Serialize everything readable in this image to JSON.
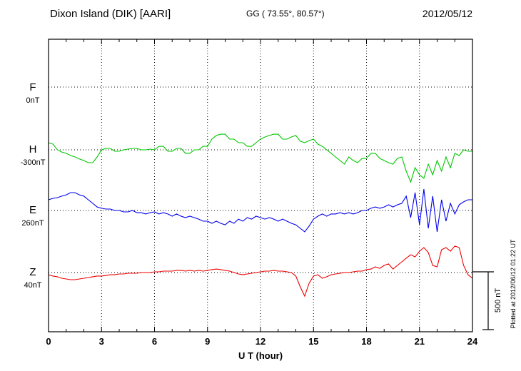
{
  "header": {
    "station_title": "Dixon Island (DIK)  [AARI]",
    "gg_coords": "GG ( 73.55°,  80.57°)",
    "date": "2012/05/12"
  },
  "axis": {
    "x_label": "U T (hour)",
    "x_ticks": [
      "0",
      "3",
      "6",
      "9",
      "12",
      "15",
      "18",
      "21",
      "24"
    ]
  },
  "scale_bar": {
    "label": "500 nT",
    "nT": 500
  },
  "footer_note": "Plotted at 2012/06/12 01:22 UT",
  "chart_data": {
    "type": "line",
    "title": "Dixon Island (DIK) [AARI] magnetogram 2012/05/12",
    "xlabel": "U T (hour)",
    "ylabel": "",
    "x_range": [
      0,
      24
    ],
    "sample_interval_hours": 0.25,
    "grid": "dotted",
    "legend_position": "left-baseline-labels",
    "scale_bar_nT": 500,
    "series": [
      {
        "id": "F",
        "label": "F",
        "baseline_label": "0nT",
        "base_nT": 0,
        "color": "#ffa500",
        "offsets_nT": []
      },
      {
        "id": "H",
        "label": "H",
        "baseline_label": "-300nT",
        "base_nT": -300,
        "color": "#00c800",
        "offsets_nT": [
          59,
          47,
          0,
          -18,
          -29,
          -47,
          -59,
          -76,
          -88,
          -106,
          -106,
          -59,
          0,
          12,
          12,
          -12,
          -12,
          0,
          6,
          12,
          12,
          0,
          0,
          6,
          0,
          29,
          29,
          -12,
          -12,
          12,
          12,
          -29,
          -29,
          0,
          0,
          29,
          29,
          88,
          118,
          129,
          129,
          88,
          88,
          59,
          59,
          29,
          29,
          59,
          88,
          106,
          118,
          129,
          129,
          88,
          88,
          106,
          118,
          71,
          59,
          76,
          88,
          47,
          29,
          0,
          -29,
          -59,
          -88,
          -118,
          -59,
          -88,
          -106,
          -71,
          -71,
          -29,
          -29,
          -71,
          -88,
          -106,
          -118,
          -71,
          -59,
          -176,
          -265,
          -147,
          -206,
          -235,
          -118,
          -206,
          -88,
          -176,
          -59,
          -147,
          -29,
          -47,
          0,
          -12,
          -12
        ]
      },
      {
        "id": "E",
        "label": "E",
        "baseline_label": "260nT",
        "base_nT": 260,
        "color": "#0000ee",
        "offsets_nT": [
          88,
          100,
          106,
          118,
          129,
          147,
          147,
          129,
          118,
          88,
          59,
          29,
          18,
          12,
          12,
          0,
          0,
          -12,
          -12,
          0,
          -18,
          -18,
          -29,
          -18,
          -12,
          -29,
          -18,
          -29,
          -47,
          -29,
          -47,
          -59,
          -47,
          -59,
          -71,
          -88,
          -88,
          -106,
          -88,
          -106,
          -118,
          -88,
          -106,
          -71,
          -88,
          -59,
          -71,
          -47,
          -59,
          -71,
          -59,
          -71,
          -88,
          -71,
          -88,
          -106,
          -118,
          -147,
          -176,
          -129,
          -71,
          -47,
          -29,
          -47,
          -29,
          -29,
          -18,
          -29,
          -18,
          -29,
          -18,
          0,
          0,
          18,
          29,
          18,
          29,
          47,
          29,
          47,
          59,
          118,
          -59,
          147,
          -118,
          176,
          -147,
          118,
          -176,
          88,
          -88,
          59,
          -29,
          47,
          71,
          88,
          88
        ]
      },
      {
        "id": "Z",
        "label": "Z",
        "baseline_label": "40nT",
        "base_nT": 40,
        "color": "#ee0000",
        "offsets_nT": [
          -18,
          -29,
          -35,
          -47,
          -53,
          -59,
          -59,
          -53,
          -47,
          -41,
          -35,
          -29,
          -29,
          -24,
          -18,
          -18,
          -12,
          -12,
          -6,
          -6,
          -6,
          0,
          0,
          0,
          6,
          6,
          12,
          12,
          12,
          18,
          18,
          12,
          18,
          12,
          18,
          12,
          18,
          24,
          29,
          24,
          18,
          12,
          0,
          -12,
          -18,
          -12,
          -6,
          0,
          6,
          12,
          12,
          18,
          12,
          12,
          6,
          0,
          -29,
          -118,
          -194,
          -88,
          -29,
          -18,
          -47,
          -35,
          -18,
          -12,
          -6,
          0,
          0,
          6,
          12,
          12,
          24,
          29,
          47,
          35,
          59,
          71,
          29,
          59,
          88,
          118,
          147,
          129,
          176,
          206,
          165,
          59,
          47,
          188,
          206,
          176,
          218,
          206,
          59,
          -18,
          -47
        ]
      }
    ]
  }
}
